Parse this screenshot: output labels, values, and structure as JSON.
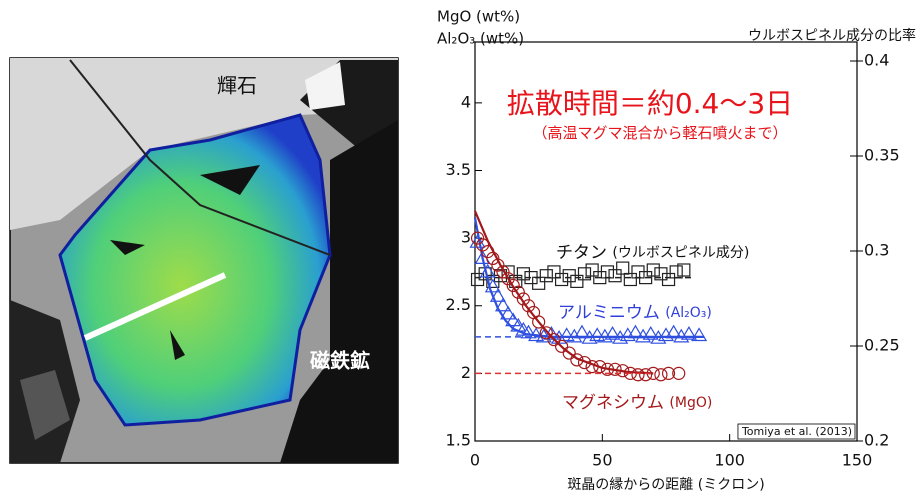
{
  "image": {
    "labels": [
      "輝石",
      "磁鉄鉱"
    ]
  },
  "chart_data": {
    "type": "scatter",
    "ylabel": [
      "MgO (wt%)",
      "Al₂O₃ (wt%)"
    ],
    "y2label": "ウルボスピネル成分の比率",
    "xlabel": "斑晶の縁からの距離 (ミクロン)",
    "xlim": [
      0,
      150
    ],
    "xticks": [
      0,
      50,
      100,
      150
    ],
    "ylim": [
      1.5,
      4.45
    ],
    "yticks": [
      1.5,
      2,
      2.5,
      3,
      3.5,
      4
    ],
    "y2lim": [
      0.2,
      0.41
    ],
    "y2ticks": [
      0.2,
      0.25,
      0.3,
      0.35,
      0.4
    ],
    "series": [
      {
        "color": "#222222",
        "marker": "square",
        "axis": "y2",
        "x": [
          1,
          4,
          7,
          10,
          13,
          16,
          19,
          22,
          25,
          28,
          31,
          34,
          37,
          40,
          43,
          46,
          49,
          52,
          55,
          58,
          61,
          64,
          67,
          70,
          73,
          76,
          79,
          82
        ],
        "values": [
          0.285,
          0.288,
          0.284,
          0.287,
          0.289,
          0.284,
          0.288,
          0.286,
          0.283,
          0.287,
          0.289,
          0.285,
          0.287,
          0.284,
          0.288,
          0.29,
          0.286,
          0.289,
          0.287,
          0.291,
          0.285,
          0.289,
          0.286,
          0.29,
          0.288,
          0.285,
          0.289,
          0.29
        ]
      },
      {
        "color": "#222222",
        "marker": "none",
        "dash": true,
        "axis": "y2",
        "x": [
          0,
          85
        ],
        "values": [
          0.286,
          0.286
        ]
      },
      {
        "color": "#2f4fe0",
        "marker": "triangle",
        "x": [
          1,
          3,
          5,
          7,
          9,
          11,
          13,
          15,
          17,
          19,
          21,
          24,
          27,
          30,
          33,
          36,
          39,
          42,
          45,
          48,
          51,
          54,
          57,
          60,
          63,
          66,
          69,
          72,
          75,
          78,
          81,
          84,
          88
        ],
        "values": [
          2.97,
          2.85,
          2.75,
          2.64,
          2.57,
          2.5,
          2.44,
          2.39,
          2.35,
          2.32,
          2.3,
          2.28,
          2.27,
          2.29,
          2.26,
          2.28,
          2.27,
          2.3,
          2.26,
          2.28,
          2.27,
          2.29,
          2.26,
          2.28,
          2.3,
          2.27,
          2.29,
          2.26,
          2.28,
          2.3,
          2.27,
          2.29,
          2.28
        ]
      },
      {
        "color": "#2f4fe0",
        "marker": "none",
        "x": [
          0,
          3,
          6,
          9,
          12,
          15,
          20,
          30,
          90
        ],
        "values": [
          3.15,
          2.85,
          2.62,
          2.48,
          2.39,
          2.33,
          2.29,
          2.27,
          2.27
        ]
      },
      {
        "color": "#2f4fe0",
        "marker": "none",
        "dash": true,
        "x": [
          0,
          90
        ],
        "values": [
          2.27,
          2.27
        ]
      },
      {
        "color": "#a3191b",
        "marker": "circle",
        "x": [
          1,
          3,
          5,
          7,
          9,
          11,
          13,
          15,
          17,
          19,
          21,
          23,
          25,
          28,
          31,
          34,
          37,
          40,
          43,
          46,
          49,
          52,
          55,
          58,
          61,
          64,
          67,
          70,
          73,
          76,
          80
        ],
        "values": [
          3.0,
          2.95,
          2.9,
          2.85,
          2.8,
          2.75,
          2.7,
          2.65,
          2.6,
          2.55,
          2.5,
          2.45,
          2.38,
          2.3,
          2.25,
          2.2,
          2.15,
          2.1,
          2.08,
          2.05,
          2.05,
          2.03,
          2.03,
          2.02,
          2.0,
          1.99,
          1.99,
          2.0,
          1.99,
          2.0,
          2.0
        ]
      },
      {
        "color": "#a3191b",
        "marker": "none",
        "x": [
          0,
          5,
          10,
          15,
          20,
          25,
          30,
          35,
          40,
          50,
          60,
          70
        ],
        "values": [
          3.2,
          2.98,
          2.8,
          2.64,
          2.5,
          2.38,
          2.27,
          2.18,
          2.11,
          2.04,
          2.01,
          2.0
        ]
      },
      {
        "color": "#e0302f",
        "marker": "none",
        "dash": true,
        "x": [
          0,
          70
        ],
        "values": [
          2.0,
          2.0
        ]
      }
    ],
    "annotations": [
      {
        "text": "拡散時間＝約0.4〜3日",
        "color": "#e8141b"
      },
      {
        "text": "（高温マグマ混合から軽石噴火まで）",
        "color": "#e8141b"
      },
      {
        "text": "チタン",
        "detail": "(ウルボスピネル成分)",
        "color": "#111111"
      },
      {
        "text": "アルミニウム",
        "detail": "(Al₂O₃)",
        "color": "#2f3fd8"
      },
      {
        "text": "マグネシウム",
        "detail": "(MgO)",
        "color": "#a3191b"
      },
      {
        "text": "Tomiya et al. (2013)",
        "color": "#111111"
      }
    ]
  }
}
